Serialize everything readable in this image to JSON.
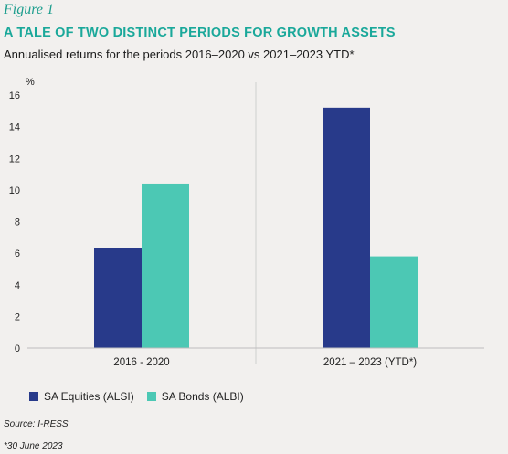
{
  "figure_label": "Figure 1",
  "colors": {
    "accent": "#1aa89a",
    "background": "#f2f0ee"
  },
  "chart_data": {
    "type": "bar",
    "title": "A TALE OF TWO DISTINCT PERIODS FOR GROWTH ASSETS",
    "subtitle": "Annualised returns for the periods 2016–2020 vs 2021–2023 YTD*",
    "ylabel": "%",
    "xlabel": "",
    "ylim": [
      0,
      16
    ],
    "yticks": [
      0,
      2,
      4,
      6,
      8,
      10,
      12,
      14,
      16
    ],
    "categories": [
      "2016 - 2020",
      "2021 – 2023 (YTD*)"
    ],
    "series": [
      {
        "name": "SA Equities (ALSI)",
        "color": "#283a8a",
        "values": [
          6.3,
          15.2
        ]
      },
      {
        "name": "SA Bonds (ALBI)",
        "color": "#4cc8b4",
        "values": [
          10.4,
          5.8
        ]
      }
    ],
    "grid": false,
    "legend_position": "bottom-left"
  },
  "source": "Source: I-RESS",
  "footnote": "*30 June 2023"
}
